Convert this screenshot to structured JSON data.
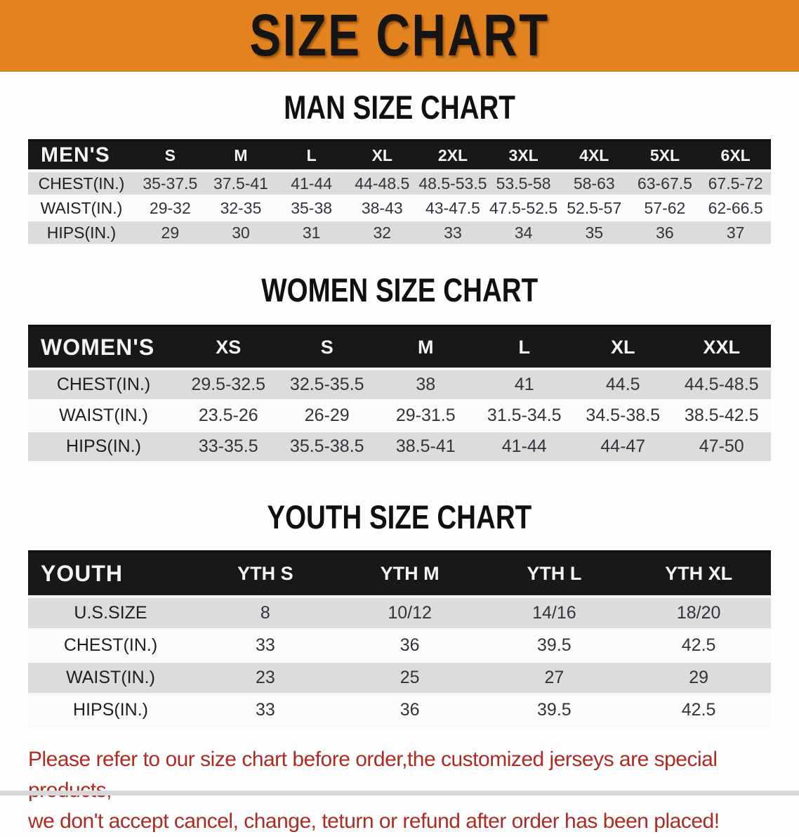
{
  "banner": {
    "title": "SIZE CHART",
    "bg_color": "#e3831f",
    "text_color": "#171513"
  },
  "sections": [
    {
      "heading": "MAN SIZE CHART",
      "table": {
        "header_label": "MEN'S",
        "columns": [
          "S",
          "M",
          "L",
          "XL",
          "2XL",
          "3XL",
          "4XL",
          "5XL",
          "6XL"
        ],
        "rows": [
          {
            "label": "CHEST(IN.)",
            "values": [
              "35-37.5",
              "37.5-41",
              "41-44",
              "44-48.5",
              "48.5-53.5",
              "53.5-58",
              "58-63",
              "63-67.5",
              "67.5-72"
            ]
          },
          {
            "label": "WAIST(IN.)",
            "values": [
              "29-32",
              "32-35",
              "35-38",
              "38-43",
              "43-47.5",
              "47.5-52.5",
              "52.5-57",
              "57-62",
              "62-66.5"
            ]
          },
          {
            "label": "HIPS(IN.)",
            "values": [
              "29",
              "30",
              "31",
              "32",
              "33",
              "34",
              "35",
              "36",
              "37"
            ]
          }
        ]
      }
    },
    {
      "heading": "WOMEN SIZE CHART",
      "table": {
        "header_label": "WOMEN'S",
        "columns": [
          "XS",
          "S",
          "M",
          "L",
          "XL",
          "XXL"
        ],
        "rows": [
          {
            "label": "CHEST(IN.)",
            "values": [
              "29.5-32.5",
              "32.5-35.5",
              "38",
              "41",
              "44.5",
              "44.5-48.5"
            ]
          },
          {
            "label": "WAIST(IN.)",
            "values": [
              "23.5-26",
              "26-29",
              "29-31.5",
              "31.5-34.5",
              "34.5-38.5",
              "38.5-42.5"
            ]
          },
          {
            "label": "HIPS(IN.)",
            "values": [
              "33-35.5",
              "35.5-38.5",
              "38.5-41",
              "41-44",
              "44-47",
              "47-50"
            ]
          }
        ]
      }
    },
    {
      "heading": "YOUTH SIZE CHART",
      "table": {
        "header_label": "YOUTH",
        "columns": [
          "YTH S",
          "YTH M",
          "YTH L",
          "YTH XL"
        ],
        "rows": [
          {
            "label": "U.S.SIZE",
            "values": [
              "8",
              "10/12",
              "14/16",
              "18/20"
            ]
          },
          {
            "label": "CHEST(IN.)",
            "values": [
              "33",
              "36",
              "39.5",
              "42.5"
            ]
          },
          {
            "label": "WAIST(IN.)",
            "values": [
              "23",
              "25",
              "27",
              "29"
            ]
          },
          {
            "label": "HIPS(IN.)",
            "values": [
              "33",
              "36",
              "39.5",
              "42.5"
            ]
          }
        ]
      }
    }
  ],
  "disclaimer": {
    "line1": "Please refer to our size chart before order,the customized jerseys are special products,",
    "line2": "we don't accept cancel, change, teturn or refund after order has been placed!",
    "text_color": "#ad2b24"
  },
  "colors": {
    "banner_orange": "#e3831f",
    "table_header_black": "#181818",
    "row_gray": "#dcdcdc",
    "row_white": "#fbfbfb",
    "disclaimer_red": "#ad2b24"
  }
}
